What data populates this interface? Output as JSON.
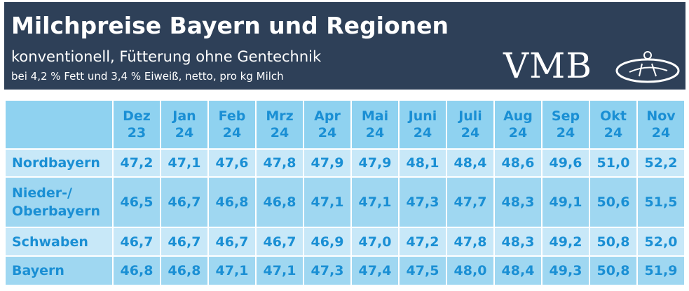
{
  "header": {
    "title": "Milchpreise Bayern und Regionen",
    "subtitle": "konventionell, Fütterung ohne Gentechnik",
    "note": "bei 4,2 % Fett und 3,4 % Eiweiß, netto, pro kg Milch",
    "logo": "VMB"
  },
  "table": {
    "columns": [
      "Dez\n23",
      "Jan\n24",
      "Feb\n24",
      "Mrz\n24",
      "Apr\n24",
      "Mai\n24",
      "Juni\n24",
      "Juli\n24",
      "Aug\n24",
      "Sep\n24",
      "Okt\n24",
      "Nov\n24"
    ],
    "rows": [
      {
        "name": "Nordbayern",
        "values": [
          "47,2",
          "47,1",
          "47,6",
          "47,8",
          "47,9",
          "47,9",
          "48,1",
          "48,4",
          "48,6",
          "49,6",
          "51,0",
          "52,2"
        ]
      },
      {
        "name": "Nieder-/\nOberbayern",
        "values": [
          "46,5",
          "46,7",
          "46,8",
          "46,8",
          "47,1",
          "47,1",
          "47,3",
          "47,7",
          "48,3",
          "49,1",
          "50,6",
          "51,5"
        ]
      },
      {
        "name": "Schwaben",
        "values": [
          "46,7",
          "46,7",
          "46,7",
          "46,7",
          "46,9",
          "47,0",
          "47,2",
          "47,8",
          "48,3",
          "49,2",
          "50,8",
          "52,0"
        ]
      },
      {
        "name": "Bayern",
        "values": [
          "46,8",
          "46,8",
          "47,1",
          "47,1",
          "47,3",
          "47,4",
          "47,5",
          "48,0",
          "48,4",
          "49,3",
          "50,8",
          "51,9"
        ]
      }
    ]
  }
}
